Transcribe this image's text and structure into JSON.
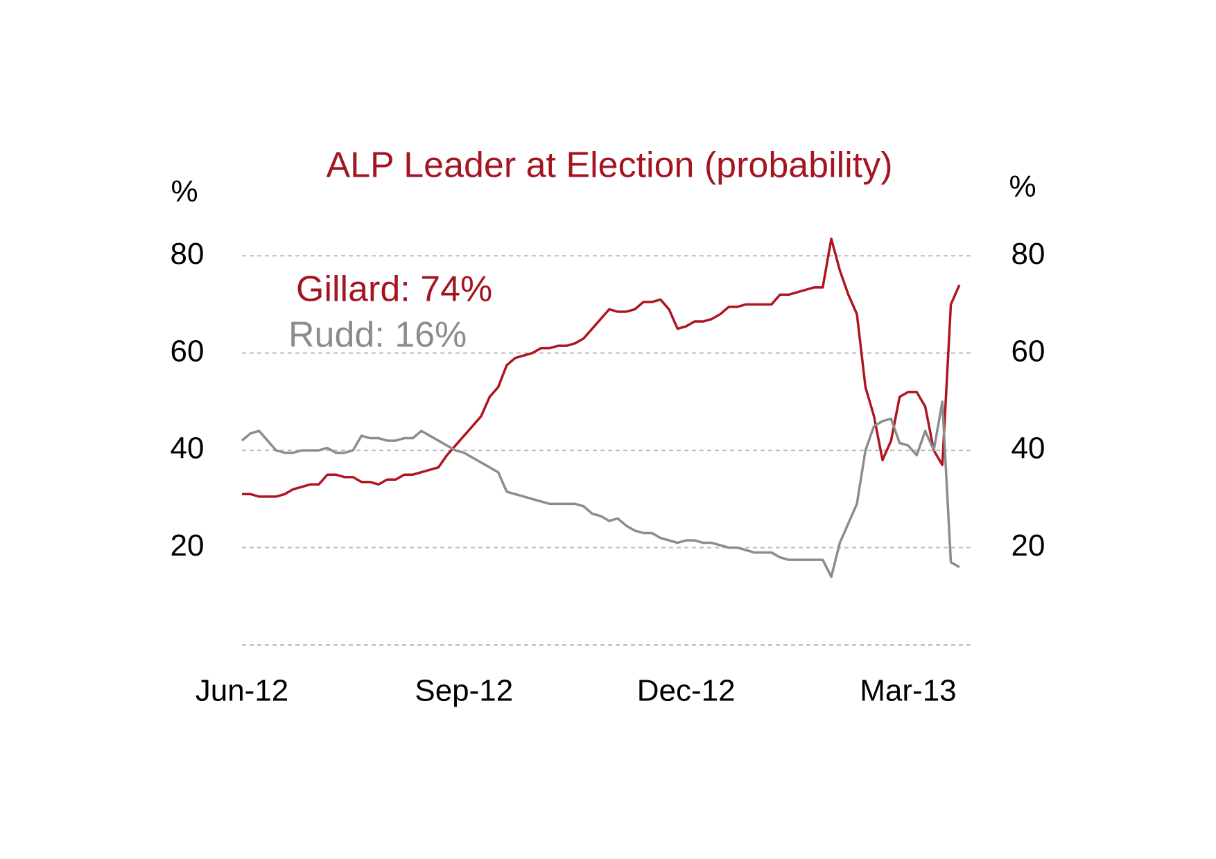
{
  "chart_data": {
    "type": "line",
    "title": "ALP Leader at Election (probability)",
    "y_label": "%",
    "y2_label": "%",
    "annotations": [
      {
        "text": "Gillard:  74%",
        "color": "#a31621"
      },
      {
        "text": "Rudd:  16%",
        "color": "#8c8c8c"
      }
    ],
    "categories": [
      "Jun-12",
      null,
      null,
      null,
      null,
      null,
      null,
      null,
      null,
      null,
      null,
      null,
      null,
      null,
      null,
      null,
      null,
      null,
      null,
      null,
      null,
      null,
      null,
      null,
      null,
      null,
      "Sep-12",
      null,
      null,
      null,
      null,
      null,
      null,
      null,
      null,
      null,
      null,
      null,
      null,
      null,
      null,
      null,
      null,
      null,
      null,
      null,
      null,
      null,
      null,
      null,
      null,
      null,
      "Dec-12",
      null,
      null,
      null,
      null,
      null,
      null,
      null,
      null,
      null,
      null,
      null,
      null,
      null,
      null,
      null,
      null,
      null,
      null,
      null,
      null,
      null,
      null,
      null,
      null,
      null,
      "Mar-13",
      null,
      null,
      null,
      null,
      null,
      null
    ],
    "series": [
      {
        "name": "Gillard",
        "color": "#b0141e",
        "values": [
          31,
          31,
          30.5,
          30.5,
          30.5,
          31,
          32,
          32.5,
          33,
          33,
          35,
          35,
          34.5,
          34.5,
          33.5,
          33.5,
          33,
          34,
          34,
          35,
          35,
          35.5,
          36,
          36.5,
          39,
          41,
          43,
          45,
          47,
          51,
          53,
          57.5,
          59,
          59.5,
          60,
          61,
          61,
          61.5,
          61.5,
          62,
          63,
          65,
          67,
          69,
          68.5,
          68.5,
          69,
          70.5,
          70.5,
          71,
          69,
          65,
          65.5,
          66.5,
          66.5,
          67,
          68,
          69.5,
          69.5,
          70,
          70,
          70,
          70,
          72,
          72,
          72.5,
          73,
          73.5,
          73.5,
          83.5,
          77,
          72,
          68,
          53,
          47,
          38,
          42,
          51,
          52,
          52,
          49,
          40,
          37,
          70,
          74
        ]
      },
      {
        "name": "Rudd",
        "color": "#8c8c8c",
        "values": [
          42,
          43.5,
          44,
          42,
          40,
          39.5,
          39.5,
          40,
          40,
          40,
          40.5,
          39.5,
          39.5,
          40,
          43,
          42.5,
          42.5,
          42,
          42,
          42.5,
          42.5,
          44,
          43,
          42,
          41,
          40,
          39.5,
          38.5,
          37.5,
          36.5,
          35.5,
          31.5,
          31,
          30.5,
          30,
          29.5,
          29,
          29,
          29,
          29,
          28.5,
          27,
          26.5,
          25.5,
          26,
          24.5,
          23.5,
          23,
          23,
          22,
          21.5,
          21,
          21.5,
          21.5,
          21,
          21,
          20.5,
          20,
          20,
          19.5,
          19,
          19,
          19,
          18,
          17.5,
          17.5,
          17.5,
          17.5,
          17.5,
          14,
          21,
          25,
          29,
          40,
          45,
          46,
          46.5,
          41.5,
          41,
          39,
          44,
          40,
          50,
          17,
          16
        ]
      }
    ],
    "ylim": [
      0,
      90
    ],
    "yticks": [
      20,
      40,
      60,
      80
    ],
    "y2lim": [
      0,
      90
    ],
    "y2ticks": [
      20,
      40,
      60,
      80
    ],
    "grid": true,
    "title_color": "#a31621"
  }
}
